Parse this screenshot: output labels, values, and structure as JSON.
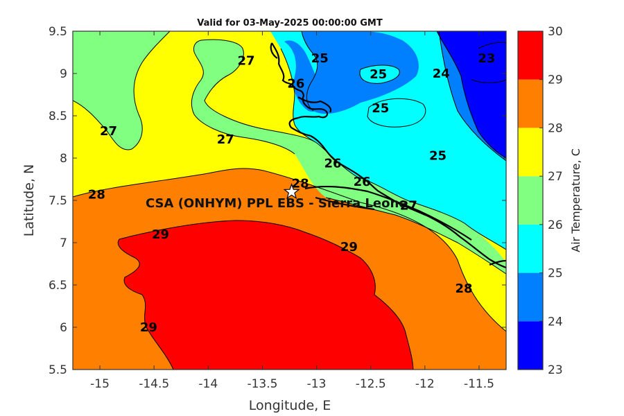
{
  "title": "Valid for 03-May-2025 00:00:00 GMT",
  "xlabel": "Longitude, E",
  "ylabel": "Latitude, N",
  "colorbar_label": "Air Temperature, C",
  "station_label": "CSA (ONHYM) PPL EBS  - Sierra Leone",
  "station": {
    "lon": -13.23,
    "lat": 7.6
  },
  "colors": {
    "23": "#0000ff",
    "24": "#0080ff",
    "25": "#00ffff",
    "26": "#80ff80",
    "27": "#ffff00",
    "28": "#ff8000",
    "29": "#ff0000",
    "30": "#800000"
  },
  "chart_data": {
    "type": "heatmap",
    "variable": "Air Temperature",
    "units": "C",
    "xlim": [
      -15.25,
      -11.25
    ],
    "ylim": [
      5.5,
      9.5
    ],
    "xticks": [
      "-15",
      "-14.5",
      "-14",
      "-13.5",
      "-13",
      "-12.5",
      "-12",
      "-11.5"
    ],
    "yticks": [
      "5.5",
      "6",
      "6.5",
      "7",
      "7.5",
      "8",
      "8.5",
      "9",
      "9.5"
    ],
    "colorbar": {
      "min": 23,
      "max": 30,
      "ticks": [
        "23",
        "24",
        "25",
        "26",
        "27",
        "28",
        "29",
        "30"
      ],
      "levels": [
        23,
        24,
        25,
        26,
        27,
        28,
        29,
        30
      ]
    },
    "contour_labels": [
      {
        "text": "23",
        "lon": -11.43,
        "lat": 9.18
      },
      {
        "text": "24",
        "lon": -11.85,
        "lat": 9.0
      },
      {
        "text": "25",
        "lon": -12.97,
        "lat": 9.18
      },
      {
        "text": "25",
        "lon": -12.43,
        "lat": 8.99
      },
      {
        "text": "25",
        "lon": -12.41,
        "lat": 8.59
      },
      {
        "text": "25",
        "lon": -11.88,
        "lat": 8.03
      },
      {
        "text": "26",
        "lon": -13.19,
        "lat": 8.88
      },
      {
        "text": "26",
        "lon": -12.85,
        "lat": 7.94
      },
      {
        "text": "26",
        "lon": -12.58,
        "lat": 7.72
      },
      {
        "text": "27",
        "lon": -13.65,
        "lat": 9.15
      },
      {
        "text": "27",
        "lon": -14.92,
        "lat": 8.32
      },
      {
        "text": "27",
        "lon": -13.84,
        "lat": 8.22
      },
      {
        "text": "27",
        "lon": -12.15,
        "lat": 7.44
      },
      {
        "text": "28",
        "lon": -15.03,
        "lat": 7.57
      },
      {
        "text": "28",
        "lon": -13.15,
        "lat": 7.7
      },
      {
        "text": "28",
        "lon": -11.64,
        "lat": 6.46
      },
      {
        "text": "29",
        "lon": -14.44,
        "lat": 7.1
      },
      {
        "text": "29",
        "lon": -12.7,
        "lat": 6.95
      },
      {
        "text": "29",
        "lon": -14.55,
        "lat": 6.0
      }
    ]
  }
}
